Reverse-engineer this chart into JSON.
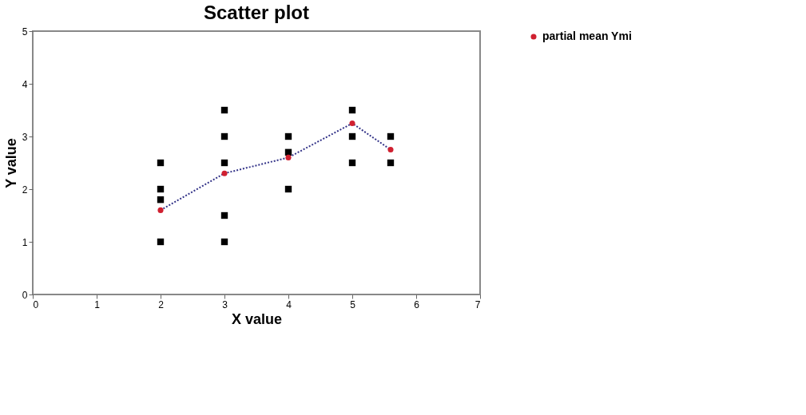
{
  "chart_data": {
    "type": "scatter",
    "title": "Scatter plot",
    "xlabel": "X value",
    "ylabel": "Y value",
    "xlim": [
      0,
      7
    ],
    "xticks": [
      0,
      1,
      2,
      3,
      4,
      5,
      6,
      7
    ],
    "ylim": [
      0,
      5
    ],
    "yticks": [
      0,
      1,
      2,
      3,
      4,
      5
    ],
    "grid": false,
    "legend": "right",
    "series": [
      {
        "type": "scatter",
        "marker": "square",
        "color": "#000000",
        "x": [
          2,
          2,
          2,
          2,
          3,
          3,
          3,
          3,
          3,
          4,
          4,
          4,
          5,
          5,
          5,
          5.6,
          5.6
        ],
        "values": [
          2.5,
          2.0,
          1.8,
          1.0,
          3.5,
          3.0,
          2.5,
          1.5,
          1.0,
          3.0,
          2.7,
          2.0,
          3.5,
          3.0,
          2.5,
          3.0,
          2.5
        ]
      },
      {
        "type": "line",
        "marker": "none",
        "line_style": "dotted",
        "color": "#333388",
        "x": [
          2,
          3,
          4,
          5,
          5.6
        ],
        "values": [
          1.6,
          2.3,
          2.6,
          3.25,
          2.75
        ]
      },
      {
        "type": "scatter",
        "marker": "circle",
        "name": "partial mean Ymi",
        "color": "#d02030",
        "x": [
          2,
          3,
          4,
          5,
          5.6
        ],
        "values": [
          1.6,
          2.3,
          2.6,
          3.25,
          2.75
        ]
      }
    ]
  }
}
